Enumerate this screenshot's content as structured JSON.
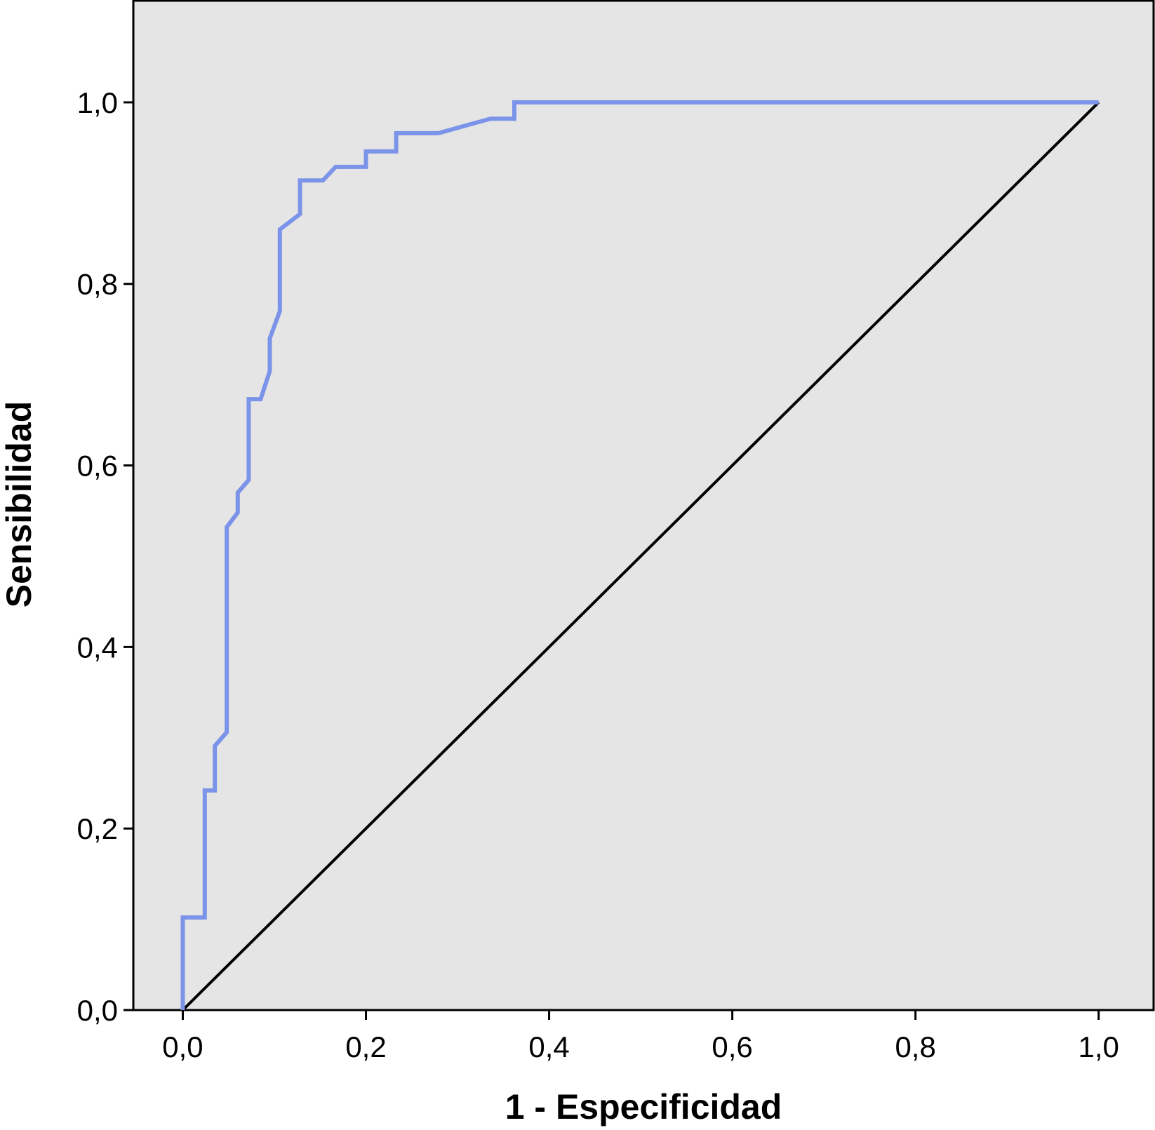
{
  "chart_data": {
    "type": "line",
    "xlabel": "1 - Especificidad",
    "ylabel": "Sensibilidad",
    "xlim": [
      -0.054,
      1.06
    ],
    "ylim": [
      0,
      1.112
    ],
    "xticks": [
      {
        "value": 0,
        "label": "0,0"
      },
      {
        "value": 0.2,
        "label": "0,2"
      },
      {
        "value": 0.4,
        "label": "0,4"
      },
      {
        "value": 0.6,
        "label": "0,6"
      },
      {
        "value": 0.8,
        "label": "0,8"
      },
      {
        "value": 1,
        "label": "1,0"
      }
    ],
    "yticks": [
      {
        "value": 0,
        "label": "0,0"
      },
      {
        "value": 0.2,
        "label": "0,2"
      },
      {
        "value": 0.4,
        "label": "0,4"
      },
      {
        "value": 0.6,
        "label": "0,6"
      },
      {
        "value": 0.8,
        "label": "0,8"
      },
      {
        "value": 1,
        "label": "1,0"
      }
    ],
    "grid": false,
    "background": "#e5e5e5",
    "series": [
      {
        "color": "#7b93e8",
        "x": [
          0,
          0,
          0.024,
          0.024,
          0.035,
          0.035,
          0.048,
          0.048,
          0.06,
          0.06,
          0.072,
          0.072,
          0.085,
          0.095,
          0.095,
          0.106,
          0.106,
          0.128,
          0.128,
          0.153,
          0.167,
          0.2,
          0.2,
          0.233,
          0.233,
          0.279,
          0.336,
          0.362,
          0.362,
          1.0
        ],
        "values": [
          0,
          0.102,
          0.102,
          0.242,
          0.242,
          0.291,
          0.306,
          0.532,
          0.548,
          0.57,
          0.584,
          0.673,
          0.673,
          0.704,
          0.74,
          0.77,
          0.86,
          0.877,
          0.914,
          0.914,
          0.929,
          0.929,
          0.946,
          0.946,
          0.966,
          0.966,
          0.982,
          0.982,
          1.0,
          1.0
        ]
      },
      {
        "color": "#000000",
        "x": [
          0,
          1
        ],
        "values": [
          0,
          1
        ]
      }
    ]
  }
}
